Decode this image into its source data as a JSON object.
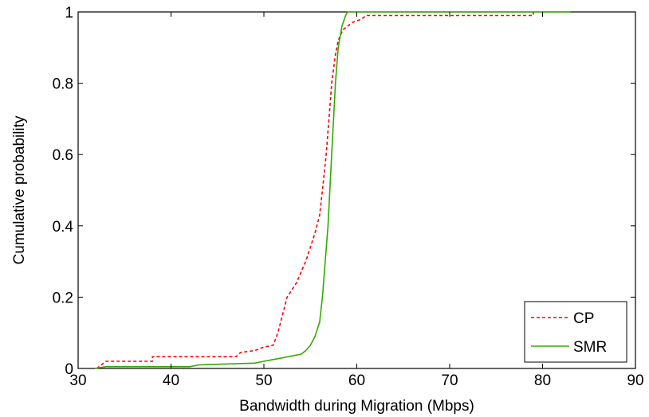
{
  "chart_data": {
    "type": "line",
    "title": "",
    "xlabel": "Bandwidth during Migration (Mbps)",
    "ylabel": "Cumulative probability",
    "xlim": [
      30,
      90
    ],
    "ylim": [
      0,
      1
    ],
    "xticks": [
      "30",
      "40",
      "50",
      "60",
      "70",
      "80",
      "90"
    ],
    "yticks": [
      "0",
      "0.2",
      "0.4",
      "0.6",
      "0.8",
      "1"
    ],
    "grid": false,
    "legend_position": "bottom-right",
    "series": [
      {
        "name": "CP",
        "color": "#ff0000",
        "style": "dashed",
        "points": [
          [
            32,
            0.0
          ],
          [
            32.5,
            0.01
          ],
          [
            33,
            0.02
          ],
          [
            38,
            0.02
          ],
          [
            38,
            0.033
          ],
          [
            47,
            0.033
          ],
          [
            47.5,
            0.045
          ],
          [
            49,
            0.05
          ],
          [
            50,
            0.06
          ],
          [
            51,
            0.065
          ],
          [
            51.5,
            0.1
          ],
          [
            52,
            0.15
          ],
          [
            52.5,
            0.2
          ],
          [
            53.5,
            0.24
          ],
          [
            54,
            0.27
          ],
          [
            54.5,
            0.3
          ],
          [
            55,
            0.34
          ],
          [
            55.5,
            0.38
          ],
          [
            56,
            0.43
          ],
          [
            56.3,
            0.5
          ],
          [
            56.7,
            0.6
          ],
          [
            57,
            0.7
          ],
          [
            57.3,
            0.8
          ],
          [
            57.7,
            0.88
          ],
          [
            58,
            0.92
          ],
          [
            58.5,
            0.95
          ],
          [
            59.5,
            0.97
          ],
          [
            60.5,
            0.98
          ],
          [
            61,
            0.99
          ],
          [
            79,
            0.99
          ],
          [
            79,
            1.0
          ]
        ]
      },
      {
        "name": "SMR",
        "color": "#33aa00",
        "style": "solid",
        "points": [
          [
            31.8,
            0.0
          ],
          [
            33,
            0.005
          ],
          [
            42,
            0.005
          ],
          [
            43,
            0.01
          ],
          [
            49,
            0.015
          ],
          [
            50,
            0.02
          ],
          [
            51,
            0.025
          ],
          [
            52,
            0.03
          ],
          [
            53,
            0.035
          ],
          [
            54,
            0.04
          ],
          [
            54.5,
            0.05
          ],
          [
            55,
            0.065
          ],
          [
            55.5,
            0.09
          ],
          [
            56,
            0.13
          ],
          [
            56.3,
            0.2
          ],
          [
            56.6,
            0.3
          ],
          [
            56.9,
            0.4
          ],
          [
            57.1,
            0.5
          ],
          [
            57.3,
            0.6
          ],
          [
            57.5,
            0.7
          ],
          [
            57.7,
            0.8
          ],
          [
            58,
            0.9
          ],
          [
            58.4,
            0.96
          ],
          [
            58.8,
            0.99
          ],
          [
            59,
            1.0
          ],
          [
            83,
            1.0
          ]
        ]
      }
    ]
  }
}
